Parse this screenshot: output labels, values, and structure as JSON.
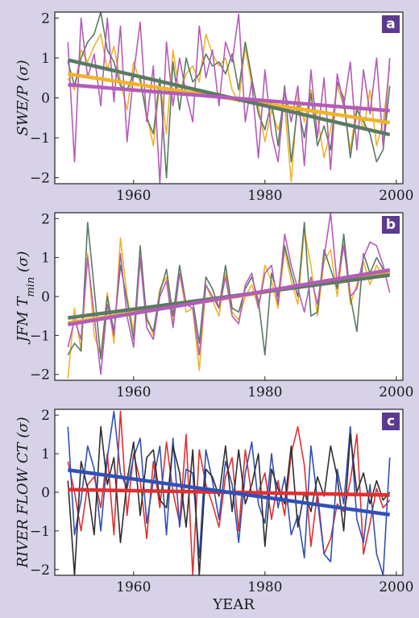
{
  "figure": {
    "xlabel": "YEAR"
  },
  "chart_data": [
    {
      "type": "line",
      "panel": "a",
      "ylabel": "SWE/P (σ)",
      "xlim": [
        1948,
        2001
      ],
      "ylim": [
        -2.15,
        2.15
      ],
      "xticks": [
        1960,
        1980,
        2000
      ],
      "yticks": [
        -2,
        -1,
        0,
        1,
        2
      ],
      "x_start": 1950,
      "series": [
        {
          "color": "#f0b429",
          "values": [
            0.5,
            0.2,
            1.2,
            0.9,
            1.3,
            1.6,
            0.7,
            1.3,
            0.4,
            -0.3,
            0.9,
            0.4,
            -0.4,
            -1.2,
            0.4,
            -0.9,
            1.2,
            0.1,
            0.6,
            0.8,
            0.4,
            1.6,
            1.1,
            0.8,
            1.0,
            0.2,
            -0.1,
            1.3,
            0.3,
            -0.2,
            -1.1,
            -0.3,
            -0.8,
            -0.2,
            -2.1,
            0.1,
            -0.6,
            0.2,
            -0.5,
            -1.5,
            -0.8,
            0.3,
            -0.2,
            -1.3,
            -0.2,
            -0.8,
            0.2,
            -1.2,
            -0.6,
            0.8
          ]
        },
        {
          "color": "#5a7a62",
          "values": [
            0.9,
            0.3,
            1.0,
            1.4,
            1.6,
            2.15,
            1.2,
            0.9,
            0.3,
            0.2,
            0.6,
            0.5,
            -0.5,
            -0.9,
            0.5,
            -2.0,
            0.9,
            -0.3,
            1.0,
            0.4,
            0.6,
            1.1,
            0.8,
            0.9,
            0.6,
            1.1,
            0.2,
            1.4,
            0.5,
            -0.4,
            -0.8,
            -0.1,
            -1.2,
            0.3,
            -1.6,
            -0.2,
            -1.0,
            0.1,
            -1.2,
            -0.7,
            -1.3,
            0.4,
            0.0,
            -1.5,
            -0.3,
            -0.6,
            -0.9,
            -1.6,
            -1.3,
            0.3
          ]
        },
        {
          "color": "#b45cb8",
          "values": [
            1.4,
            -1.6,
            2.0,
            0.5,
            1.1,
            -0.2,
            2.0,
            -0.1,
            1.8,
            -1.1,
            0.6,
            1.9,
            -0.6,
            0.8,
            -2.15,
            1.4,
            -0.2,
            1.0,
            0.1,
            -0.6,
            1.8,
            0.5,
            1.2,
            -0.2,
            1.4,
            0.9,
            2.1,
            -0.6,
            0.4,
            -1.5,
            0.7,
            -0.9,
            -1.6,
            0.2,
            -0.6,
            0.3,
            -1.7,
            0.7,
            -1.0,
            0.5,
            -1.8,
            0.6,
            -0.2,
            0.9,
            -1.3,
            0.7,
            -0.4,
            1.0,
            -1.2,
            1.0
          ]
        }
      ],
      "trends": [
        {
          "color": "#f0b429",
          "start": 0.6,
          "end": -0.62
        },
        {
          "color": "#5a7a62",
          "start": 0.95,
          "end": -0.92
        },
        {
          "color": "#b45cb8",
          "start": 0.33,
          "end": -0.32
        }
      ]
    },
    {
      "type": "line",
      "panel": "b",
      "ylabel": "JFM T",
      "ylabel_sub": "min",
      "ylabel_unit": " (σ)",
      "xlim": [
        1948,
        2001
      ],
      "ylim": [
        -2.15,
        2.15
      ],
      "xticks": [
        1960,
        1980,
        2000
      ],
      "yticks": [
        -2,
        -1,
        0,
        1,
        2
      ],
      "x_start": 1950,
      "series": [
        {
          "color": "#f0b429",
          "values": [
            -2.1,
            -0.3,
            -1.4,
            1.1,
            -1.0,
            -1.5,
            0.1,
            -1.2,
            1.5,
            0.0,
            -0.9,
            0.9,
            -0.5,
            -1.0,
            0.2,
            0.5,
            -0.7,
            0.6,
            -0.4,
            -0.3,
            -1.9,
            0.3,
            -0.1,
            -0.5,
            0.6,
            -0.4,
            -0.6,
            0.0,
            0.3,
            -0.3,
            0.8,
            0.4,
            -0.3,
            1.2,
            0.4,
            -0.2,
            1.7,
            0.8,
            -0.5,
            0.9,
            1.2,
            0.0,
            1.4,
            -0.2,
            0.3,
            0.9,
            0.3,
            0.8,
            0.5,
            0.7
          ]
        },
        {
          "color": "#5a7a62",
          "values": [
            -1.5,
            -1.2,
            -1.4,
            1.9,
            0.2,
            -1.6,
            0.0,
            -0.9,
            0.8,
            -0.1,
            -1.1,
            1.3,
            -0.6,
            -0.9,
            0.1,
            0.7,
            -0.5,
            0.8,
            -0.2,
            -0.1,
            -1.2,
            0.5,
            0.2,
            -0.3,
            0.8,
            -0.3,
            -0.4,
            0.2,
            0.5,
            -0.1,
            -1.5,
            0.6,
            0.0,
            1.3,
            0.6,
            0.0,
            1.9,
            -0.5,
            -0.4,
            1.2,
            0.7,
            0.2,
            1.6,
            0.0,
            -0.9,
            1.1,
            0.6,
            1.0,
            0.7,
            0.6
          ]
        },
        {
          "color": "#b45cb8",
          "values": [
            -1.3,
            -0.6,
            -1.1,
            1.0,
            -0.5,
            -2.0,
            -0.2,
            -1.0,
            1.1,
            -0.5,
            -1.3,
            1.0,
            -0.8,
            -1.1,
            0.0,
            0.4,
            -0.8,
            0.6,
            -0.2,
            -0.3,
            -1.5,
            0.3,
            0.0,
            -0.3,
            0.5,
            -0.5,
            -0.7,
            0.3,
            0.6,
            -0.3,
            0.6,
            0.8,
            -0.2,
            1.6,
            0.8,
            0.2,
            -0.4,
            0.5,
            -0.2,
            1.0,
            2.15,
            0.3,
            1.3,
            0.0,
            0.2,
            1.0,
            1.4,
            1.3,
            0.8,
            0.1
          ]
        }
      ],
      "trends": [
        {
          "color": "#f0b429",
          "start": -0.68,
          "end": 0.62
        },
        {
          "color": "#5a7a62",
          "start": -0.55,
          "end": 0.55
        },
        {
          "color": "#b45cb8",
          "start": -0.72,
          "end": 0.68
        }
      ]
    },
    {
      "type": "line",
      "panel": "c",
      "ylabel": "RIVER FLOW CT (σ)",
      "xlim": [
        1948,
        2001
      ],
      "ylim": [
        -2.15,
        2.15
      ],
      "xticks": [
        1960,
        1980,
        2000
      ],
      "yticks": [
        -2,
        -1,
        0,
        1,
        2
      ],
      "x_start": 1950,
      "series": [
        {
          "color": "#e03030",
          "values": [
            0.8,
            0.0,
            -1.0,
            0.2,
            0.4,
            -0.4,
            1.0,
            -1.1,
            2.1,
            -0.6,
            1.0,
            0.3,
            -1.2,
            0.8,
            -0.4,
            1.3,
            0.0,
            -0.8,
            1.5,
            -2.15,
            1.1,
            0.2,
            -0.3,
            -0.9,
            0.4,
            0.9,
            -1.0,
            1.1,
            -0.1,
            0.0,
            0.5,
            -0.7,
            0.3,
            -0.6,
            1.0,
            1.7,
            0.7,
            -1.4,
            0.0,
            -1.6,
            -1.2,
            -0.3,
            -0.5,
            0.3,
            1.5,
            -1.6,
            -0.8,
            0.1,
            -0.4,
            -0.2
          ]
        },
        {
          "color": "#3050b8",
          "values": [
            1.7,
            -1.1,
            -0.2,
            1.2,
            0.6,
            -1.0,
            0.9,
            2.1,
            0.5,
            0.1,
            0.9,
            1.4,
            -0.8,
            0.3,
            1.2,
            -1.1,
            1.4,
            -0.9,
            0.6,
            0.5,
            -1.7,
            1.1,
            0.3,
            -0.7,
            0.8,
            0.2,
            -1.3,
            0.5,
            1.3,
            -0.3,
            -0.8,
            1.0,
            -0.4,
            0.4,
            -1.1,
            -0.6,
            -1.7,
            1.2,
            -0.2,
            -1.6,
            -1.8,
            0.6,
            -0.3,
            1.7,
            -0.7,
            -1.3,
            0.2,
            -1.6,
            -2.15,
            0.9
          ]
        },
        {
          "color": "#2e2e2e",
          "values": [
            0.3,
            -2.15,
            0.8,
            0.1,
            -1.1,
            1.7,
            0.2,
            0.9,
            -1.3,
            0.3,
            1.3,
            -0.6,
            0.9,
            1.1,
            -0.2,
            -0.4,
            1.2,
            0.5,
            -0.9,
            1.1,
            -2.15,
            0.6,
            0.4,
            -0.1,
            1.2,
            -0.5,
            1.1,
            -0.3,
            0.2,
            1.0,
            -1.4,
            0.6,
            0.1,
            -0.3,
            1.2,
            -0.9,
            0.0,
            -0.5,
            0.4,
            -0.1,
            1.2,
            0.4,
            -1.0,
            1.5,
            0.0,
            0.5,
            -0.3,
            0.3,
            -0.2,
            0.0
          ]
        }
      ],
      "trends": [
        {
          "color": "#e03030",
          "start": 0.07,
          "end": -0.07
        },
        {
          "color": "#3050b8",
          "start": 0.58,
          "end": -0.58
        }
      ]
    }
  ]
}
